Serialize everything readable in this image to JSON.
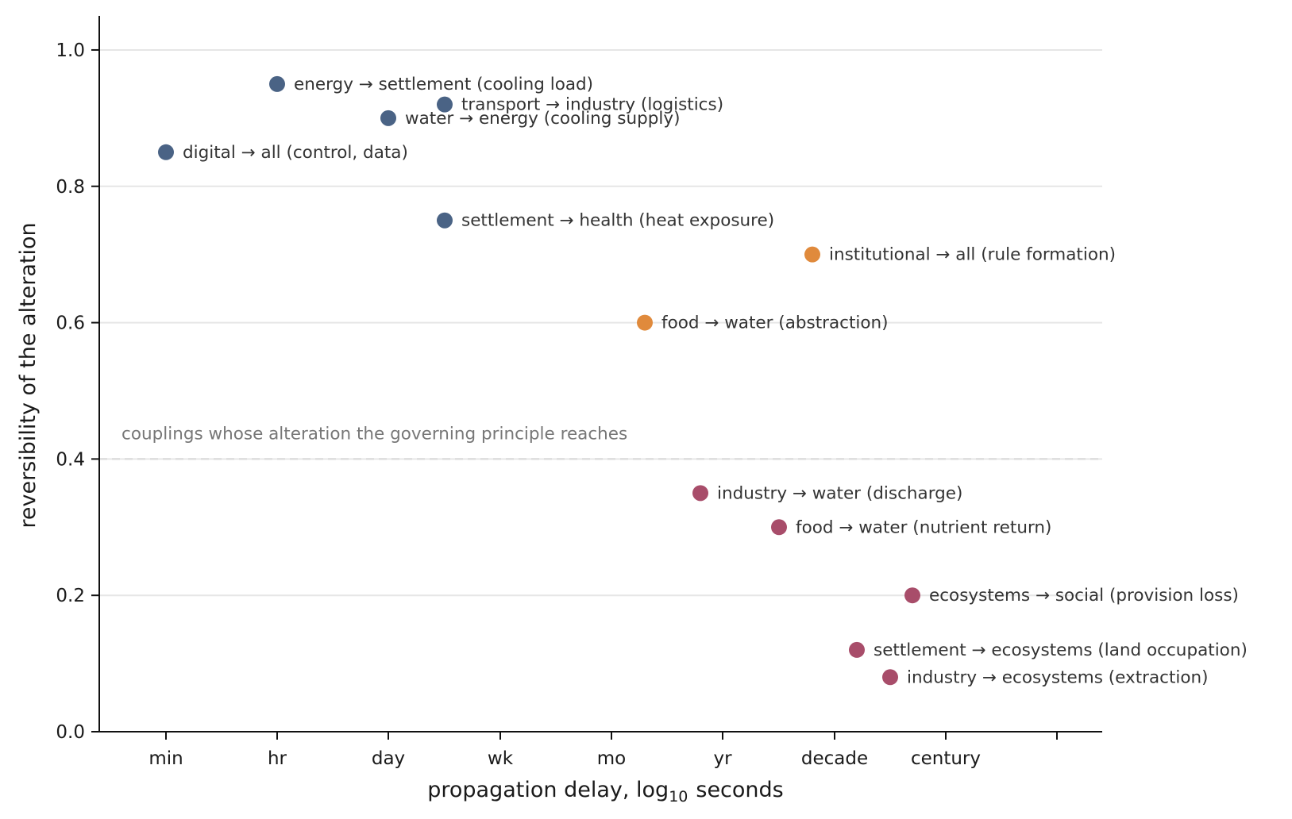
{
  "chart_data": {
    "type": "scatter",
    "xlabel": "propagation delay, log",
    "xlabel_sub": "10",
    "xlabel_suffix": "seconds",
    "ylabel": "reversibility of the alteration",
    "x_ticks": [
      {
        "value": 1.78,
        "label": "min"
      },
      {
        "value": 3.56,
        "label": "hr"
      },
      {
        "value": 4.94,
        "label": "day"
      },
      {
        "value": 5.78,
        "label": "wk"
      },
      {
        "value": 6.42,
        "label": "mo"
      },
      {
        "value": 7.5,
        "label": "yr"
      },
      {
        "value": 8.5,
        "label": "decade"
      },
      {
        "value": 9.5,
        "label": "century"
      },
      {
        "value": 10.5,
        "label": ""
      }
    ],
    "x_tick_positions_note": "",
    "y_ticks": [
      0.0,
      0.2,
      0.4,
      0.6,
      0.8,
      1.0
    ],
    "ylim": [
      0.0,
      1.05
    ],
    "grid": "horizontal",
    "threshold": {
      "y": 0.4,
      "label": "couplings whose alteration the governing principle reaches"
    },
    "colors": {
      "reversible": "#4a6385",
      "intermediate": "#e08a3c",
      "irreversible": "#a84d6a"
    },
    "points": [
      {
        "x": 1,
        "y": 0.95,
        "from": "energy",
        "to": "settlement (cooling load)",
        "group": "reversible"
      },
      {
        "x": 2,
        "y": 0.92,
        "from": "transport",
        "to": "industry (logistics)",
        "group": "reversible"
      },
      {
        "x": 3,
        "y": 0.9,
        "from": "water",
        "to": "energy (cooling supply)",
        "group": "reversible"
      },
      {
        "x": 4,
        "y": 0.85,
        "from": "digital",
        "to": "all (control, data)",
        "group": "reversible"
      },
      {
        "x": 5,
        "y": 0.75,
        "from": "settlement",
        "to": "health (heat exposure)",
        "group": "reversible"
      },
      {
        "x": 6,
        "y": 0.7,
        "from": "institutional",
        "to": "all (rule formation)",
        "group": "intermediate"
      },
      {
        "x": 7,
        "y": 0.6,
        "from": "food",
        "to": "water (abstraction)",
        "group": "intermediate"
      },
      {
        "x": 8,
        "y": 0.35,
        "from": "industry",
        "to": "water (discharge)",
        "group": "irreversible"
      },
      {
        "x": 9,
        "y": 0.3,
        "from": "food",
        "to": "water (nutrient return)",
        "group": "irreversible"
      },
      {
        "x": 10,
        "y": 0.2,
        "from": "ecosystems",
        "to": "social (provision loss)",
        "group": "irreversible"
      },
      {
        "x": 11,
        "y": 0.12,
        "from": "settlement",
        "to": "ecosystems (land occupation)",
        "group": "irreversible"
      },
      {
        "x": 12,
        "y": 0.08,
        "from": "industry",
        "to": "ecosystems (extraction)",
        "group": "irreversible"
      }
    ]
  }
}
